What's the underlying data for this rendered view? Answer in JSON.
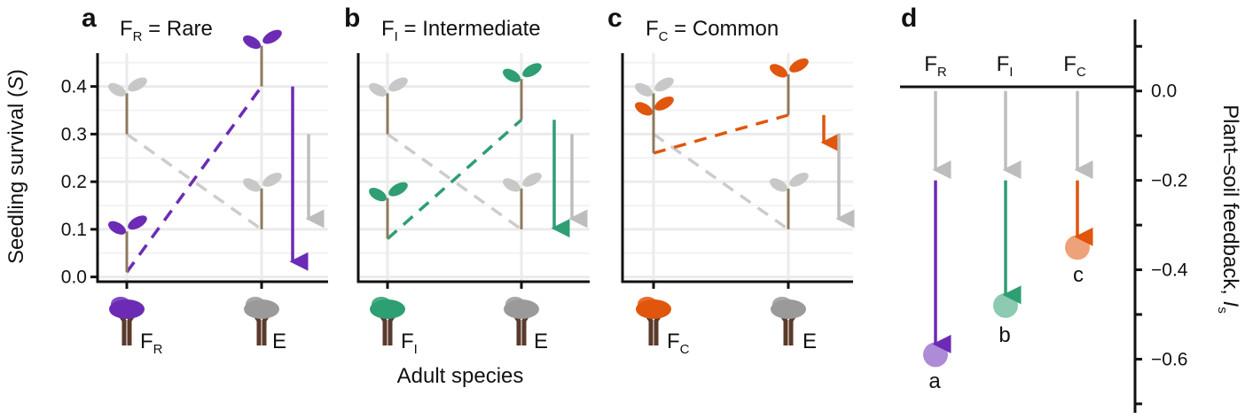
{
  "colors": {
    "rare": "#6c2bb4",
    "intermediate": "#2e9e73",
    "common": "#e0560d",
    "grey": "#bdbdbd",
    "dash_grey": "#cccccc",
    "trunk": "#5a3a2b"
  },
  "axes": {
    "y_label": "Seedling survival (",
    "y_label_var": "S",
    "y_label_end": ")",
    "x_label": "Adult species",
    "y_ticks": [
      "0.0",
      "0.1",
      "0.2",
      "0.3",
      "0.4"
    ],
    "right_label": "Plant–soil feedback, ",
    "right_label_var": "I",
    "right_label_sub": "s",
    "right_ticks": [
      "0.0",
      "−0.2",
      "−0.4",
      "−0.6"
    ]
  },
  "panels": [
    {
      "letter": "a",
      "sym": "F",
      "sub": "R",
      "rest": " = Rare",
      "adult_sub": "R",
      "other": "E",
      "color_key": "rare"
    },
    {
      "letter": "b",
      "sym": "F",
      "sub": "I",
      "rest": " = Intermediate",
      "adult_sub": "I",
      "other": "E",
      "color_key": "intermediate"
    },
    {
      "letter": "c",
      "sym": "F",
      "sub": "C",
      "rest": " = Common",
      "adult_sub": "C",
      "other": "E",
      "color_key": "common"
    }
  ],
  "panel_d": {
    "letter": "d",
    "columns": [
      {
        "sym": "F",
        "sub": "R",
        "point_label": "a"
      },
      {
        "sym": "F",
        "sub": "I",
        "point_label": "b"
      },
      {
        "sym": "F",
        "sub": "C",
        "point_label": "c"
      }
    ]
  },
  "chart_data": [
    {
      "panel": "a",
      "type": "line",
      "title": "FR = Rare",
      "ylabel": "Seedling survival (S)",
      "xlabel": "Adult species",
      "ylim": [
        -0.01,
        0.47
      ],
      "categories": [
        "FR",
        "E"
      ],
      "series": [
        {
          "name": "FR seedling",
          "values": [
            0.01,
            0.4
          ]
        },
        {
          "name": "E seedling",
          "values": [
            0.3,
            0.1
          ]
        }
      ],
      "arrows": [
        {
          "name": "FR",
          "from": 0.4,
          "to": 0.01
        },
        {
          "name": "E",
          "from": 0.3,
          "to": 0.1
        }
      ]
    },
    {
      "panel": "b",
      "type": "line",
      "title": "FI = Intermediate",
      "xlabel": "Adult species",
      "ylim": [
        -0.01,
        0.47
      ],
      "categories": [
        "FI",
        "E"
      ],
      "series": [
        {
          "name": "FI seedling",
          "values": [
            0.08,
            0.33
          ]
        },
        {
          "name": "E seedling",
          "values": [
            0.3,
            0.1
          ]
        }
      ],
      "arrows": [
        {
          "name": "FI",
          "from": 0.33,
          "to": 0.08
        },
        {
          "name": "E",
          "from": 0.3,
          "to": 0.1
        }
      ]
    },
    {
      "panel": "c",
      "type": "line",
      "title": "FC = Common",
      "xlabel": "Adult species",
      "ylim": [
        -0.01,
        0.47
      ],
      "categories": [
        "FC",
        "E"
      ],
      "series": [
        {
          "name": "FC seedling",
          "values": [
            0.26,
            0.34
          ]
        },
        {
          "name": "E seedling",
          "values": [
            0.3,
            0.1
          ]
        }
      ],
      "arrows": [
        {
          "name": "FC",
          "from": 0.34,
          "to": 0.26
        },
        {
          "name": "E",
          "from": 0.3,
          "to": 0.1
        }
      ]
    },
    {
      "panel": "d",
      "type": "scatter",
      "ylabel": "Plant–soil feedback, Is",
      "ylim": [
        -0.72,
        0.16
      ],
      "categories": [
        "FR",
        "FI",
        "FC"
      ],
      "values": [
        -0.59,
        -0.48,
        -0.35
      ],
      "grey_to": [
        -0.2,
        -0.2,
        -0.2
      ],
      "point_labels": [
        "a",
        "b",
        "c"
      ]
    }
  ]
}
